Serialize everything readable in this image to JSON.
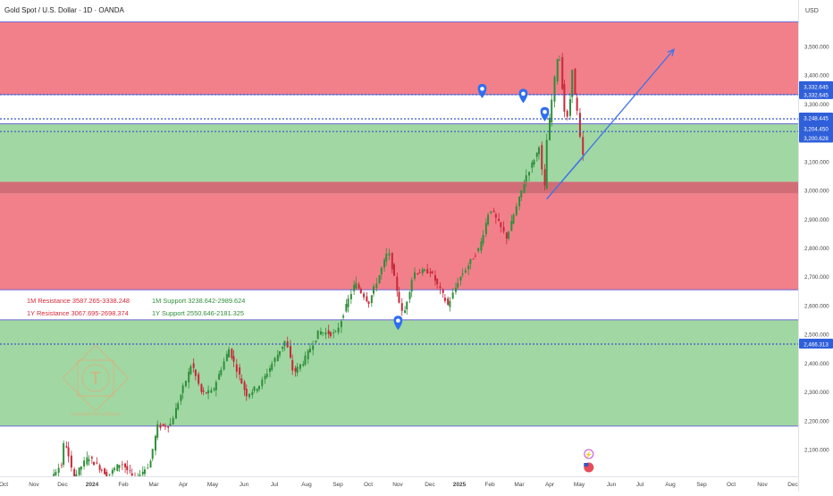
{
  "header": {
    "title": "Gold Spot / U.S. Dollar · 1D · OANDA"
  },
  "axis": {
    "currency": "USD"
  },
  "colors": {
    "resistance_zone": "#f06a76",
    "support_zone": "#90d093",
    "key_band": "#c9545f",
    "candle_up": "#2f8f3a",
    "candle_down": "#c8283a",
    "trend_line": "#3f73e6",
    "dotted_line": "#3b57c9",
    "zone_border": "#6e6bd1",
    "label_bg": "#2f5fd9",
    "resistance_text": "#d8293a",
    "support_text": "#2f8f3a",
    "axis_text": "#444444",
    "watermark": "#d9b07a",
    "marker": "#2f6ff0"
  },
  "annotations": {
    "res_1m": "1M Resistance 3587.265-3338.248",
    "res_1y": "1Y Resistance 3067.695-2698.374",
    "sup_1m": "1M Support 3238.642-2989.624",
    "sup_1y": "1Y Support 2550.646-2181.325"
  },
  "watermark": {
    "text": "TradeWithTheTrendTeam",
    "letter": "T"
  },
  "chart_data": {
    "type": "candlestick",
    "symbol": "Gold Spot / U.S. Dollar",
    "interval": "1D",
    "exchange": "OANDA",
    "ylim": [
      2040,
      3570
    ],
    "y_ticks": [
      2100,
      2200,
      2300,
      2400,
      2500,
      2600,
      2700,
      2800,
      2900,
      3000,
      3100,
      3200,
      3300,
      3400,
      3500
    ],
    "x_ticks": [
      "Oct",
      "Nov",
      "Dec",
      "2024",
      "Feb",
      "Mar",
      "Apr",
      "May",
      "Jun",
      "Jul",
      "Aug",
      "Sep",
      "Oct",
      "Nov",
      "Dec",
      "2025",
      "Feb",
      "Mar",
      "Apr",
      "May",
      "Jun",
      "Jul",
      "Aug",
      "Sep",
      "Oct",
      "Nov",
      "Dec"
    ],
    "price_labels": [
      {
        "text": "3,332.645",
        "value": 3332.645
      },
      {
        "text": "3,332.645",
        "value": 3332.645
      },
      {
        "text": "3,248.445",
        "value": 3248.445
      },
      {
        "text": "3,231.559",
        "value": 3231.559
      },
      {
        "text": "3,204.450",
        "value": 3204.45
      },
      {
        "text": "3,200.628",
        "value": 3200.628
      },
      {
        "text": "2,466.313",
        "value": 2466.313
      }
    ],
    "zones": [
      {
        "name": "resistance-upper",
        "from": 3590,
        "to": 3332.645
      },
      {
        "name": "support-upper",
        "from": 3231.559,
        "to": 3030
      },
      {
        "name": "key-band",
        "from": 3030,
        "to": 2989.624
      },
      {
        "name": "resistance-lower",
        "from": 2989.624,
        "to": 2655
      },
      {
        "name": "support-lower",
        "from": 2550.646,
        "to": 2181.325
      }
    ],
    "dotted_levels": [
      3332.645,
      3248.445,
      3204.45,
      2466.313
    ],
    "trend_line": {
      "from": [
        "2025-04-07",
        2970
      ],
      "to": [
        "2025-08-15",
        3490
      ]
    },
    "trend_line_2": {
      "from": [
        "2025-04-07",
        2970
      ],
      "to": [
        "2025-05-15",
        3120
      ]
    },
    "markers": [
      {
        "date": "2024-11-06",
        "price": 2540
      },
      {
        "date": "2025-01-31",
        "price": 3345
      },
      {
        "date": "2025-03-14",
        "price": 3328
      },
      {
        "date": "2025-04-05",
        "price": 3265
      }
    ],
    "price_path": [
      [
        "2023-10-20",
        1980
      ],
      [
        "2023-11-15",
        1985
      ],
      [
        "2023-12-01",
        2050
      ],
      [
        "2023-12-04",
        2140
      ],
      [
        "2023-12-13",
        2000
      ],
      [
        "2023-12-28",
        2075
      ],
      [
        "2024-01-17",
        2010
      ],
      [
        "2024-01-31",
        2055
      ],
      [
        "2024-02-14",
        1995
      ],
      [
        "2024-02-29",
        2050
      ],
      [
        "2024-03-08",
        2180
      ],
      [
        "2024-03-21",
        2185
      ],
      [
        "2024-04-05",
        2330
      ],
      [
        "2024-04-12",
        2400
      ],
      [
        "2024-04-22",
        2295
      ],
      [
        "2024-05-03",
        2300
      ],
      [
        "2024-05-20",
        2450
      ],
      [
        "2024-06-07",
        2290
      ],
      [
        "2024-06-21",
        2325
      ],
      [
        "2024-07-17",
        2480
      ],
      [
        "2024-07-25",
        2365
      ],
      [
        "2024-08-05",
        2410
      ],
      [
        "2024-08-20",
        2510
      ],
      [
        "2024-09-06",
        2500
      ],
      [
        "2024-09-26",
        2680
      ],
      [
        "2024-10-10",
        2610
      ],
      [
        "2024-10-30",
        2790
      ],
      [
        "2024-11-14",
        2560
      ],
      [
        "2024-11-25",
        2715
      ],
      [
        "2024-12-12",
        2720
      ],
      [
        "2024-12-30",
        2600
      ],
      [
        "2025-01-10",
        2690
      ],
      [
        "2025-01-31",
        2800
      ],
      [
        "2025-02-11",
        2940
      ],
      [
        "2025-02-28",
        2835
      ],
      [
        "2025-03-20",
        3050
      ],
      [
        "2025-03-31",
        3130
      ],
      [
        "2025-04-03",
        3165
      ],
      [
        "2025-04-07",
        2970
      ],
      [
        "2025-04-10",
        3170
      ],
      [
        "2025-04-16",
        3330
      ],
      [
        "2025-04-22",
        3500
      ],
      [
        "2025-04-28",
        3280
      ],
      [
        "2025-05-02",
        3240
      ],
      [
        "2025-05-06",
        3435
      ],
      [
        "2025-05-09",
        3320
      ],
      [
        "2025-05-13",
        3240
      ],
      [
        "2025-05-15",
        3120
      ]
    ],
    "x_range": [
      "2023-09-26",
      "2025-12-31"
    ]
  }
}
